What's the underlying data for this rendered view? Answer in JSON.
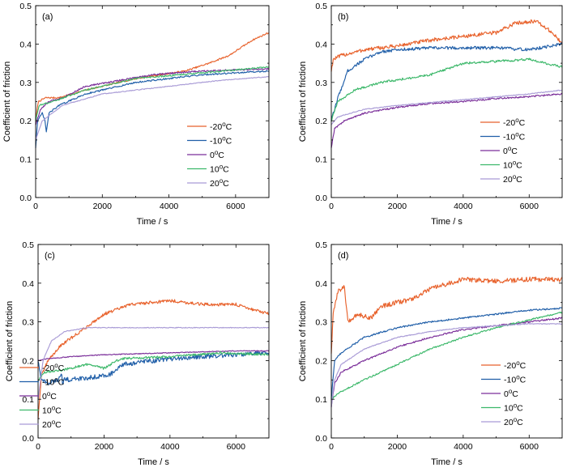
{
  "colors": {
    "-20": "#e8622c",
    "-10": "#1f5ea8",
    "0": "#7b2f9a",
    "10": "#3cb86a",
    "20": "#a99bd6"
  },
  "legend_labels": [
    "-20ºC",
    "-10ºC",
    "0ºC",
    "10ºC",
    "20ºC"
  ],
  "chart_data": [
    {
      "type": "line",
      "panel": "(a)",
      "xlabel": "Time / s",
      "ylabel": "Coefficient of friction",
      "xlim": [
        0,
        7000
      ],
      "ylim": [
        0,
        0.5
      ],
      "xticks": [
        0,
        2000,
        4000,
        6000
      ],
      "yticks": [
        0,
        0.1,
        0.2,
        0.3,
        0.4,
        0.5
      ],
      "legend_position": "bottom-right",
      "series": [
        {
          "name": "-20ºC",
          "key": "-20",
          "noise": 0.002,
          "points": [
            [
              0,
              0.2
            ],
            [
              80,
              0.25
            ],
            [
              300,
              0.26
            ],
            [
              700,
              0.26
            ],
            [
              1500,
              0.28
            ],
            [
              3000,
              0.31
            ],
            [
              4500,
              0.33
            ],
            [
              5200,
              0.35
            ],
            [
              5800,
              0.37
            ],
            [
              6500,
              0.41
            ],
            [
              7000,
              0.43
            ]
          ]
        },
        {
          "name": "-10ºC",
          "key": "-10",
          "noise": 0.002,
          "points": [
            [
              0,
              0.13
            ],
            [
              60,
              0.2
            ],
            [
              200,
              0.22
            ],
            [
              280,
              0.2
            ],
            [
              320,
              0.17
            ],
            [
              400,
              0.22
            ],
            [
              700,
              0.24
            ],
            [
              1500,
              0.27
            ],
            [
              3000,
              0.3
            ],
            [
              5000,
              0.32
            ],
            [
              7000,
              0.33
            ]
          ]
        },
        {
          "name": "0ºC",
          "key": "0",
          "noise": 0.002,
          "points": [
            [
              0,
              0.19
            ],
            [
              150,
              0.23
            ],
            [
              400,
              0.25
            ],
            [
              800,
              0.26
            ],
            [
              1500,
              0.29
            ],
            [
              2500,
              0.305
            ],
            [
              3500,
              0.32
            ],
            [
              5000,
              0.33
            ],
            [
              7000,
              0.335
            ]
          ]
        },
        {
          "name": "10ºC",
          "key": "10",
          "noise": 0.002,
          "points": [
            [
              0,
              0.2
            ],
            [
              100,
              0.24
            ],
            [
              500,
              0.25
            ],
            [
              1500,
              0.28
            ],
            [
              3000,
              0.31
            ],
            [
              5000,
              0.325
            ],
            [
              7000,
              0.34
            ]
          ]
        },
        {
          "name": "20ºC",
          "key": "20",
          "noise": 0.001,
          "points": [
            [
              0,
              0.15
            ],
            [
              200,
              0.2
            ],
            [
              800,
              0.24
            ],
            [
              2000,
              0.27
            ],
            [
              4000,
              0.29
            ],
            [
              5500,
              0.305
            ],
            [
              7000,
              0.315
            ]
          ]
        }
      ]
    },
    {
      "type": "line",
      "panel": "(b)",
      "xlabel": "Time / s",
      "ylabel": "Coefficient of friction",
      "xlim": [
        0,
        7000
      ],
      "ylim": [
        0,
        0.5
      ],
      "xticks": [
        0,
        2000,
        4000,
        6000
      ],
      "yticks": [
        0,
        0.1,
        0.2,
        0.3,
        0.4,
        0.5
      ],
      "legend_position": "bottom-right",
      "series": [
        {
          "name": "-20ºC",
          "key": "-20",
          "noise": 0.005,
          "points": [
            [
              0,
              0.33
            ],
            [
              60,
              0.36
            ],
            [
              300,
              0.37
            ],
            [
              1000,
              0.385
            ],
            [
              2000,
              0.395
            ],
            [
              3000,
              0.41
            ],
            [
              4000,
              0.42
            ],
            [
              5000,
              0.43
            ],
            [
              5600,
              0.455
            ],
            [
              6200,
              0.46
            ],
            [
              6700,
              0.43
            ],
            [
              7000,
              0.4
            ]
          ]
        },
        {
          "name": "-10ºC",
          "key": "-10",
          "noise": 0.004,
          "points": [
            [
              0,
              0.2
            ],
            [
              200,
              0.26
            ],
            [
              500,
              0.33
            ],
            [
              1000,
              0.36
            ],
            [
              1500,
              0.38
            ],
            [
              2000,
              0.385
            ],
            [
              3000,
              0.39
            ],
            [
              4000,
              0.39
            ],
            [
              5000,
              0.39
            ],
            [
              6000,
              0.385
            ],
            [
              7000,
              0.4
            ]
          ]
        },
        {
          "name": "0ºC",
          "key": "0",
          "noise": 0.002,
          "points": [
            [
              0,
              0.13
            ],
            [
              100,
              0.18
            ],
            [
              400,
              0.2
            ],
            [
              1000,
              0.22
            ],
            [
              2000,
              0.235
            ],
            [
              3000,
              0.245
            ],
            [
              4000,
              0.25
            ],
            [
              5000,
              0.258
            ],
            [
              6000,
              0.263
            ],
            [
              7000,
              0.27
            ]
          ]
        },
        {
          "name": "10ºC",
          "key": "10",
          "noise": 0.003,
          "points": [
            [
              0,
              0.2
            ],
            [
              200,
              0.25
            ],
            [
              700,
              0.28
            ],
            [
              1500,
              0.3
            ],
            [
              3000,
              0.32
            ],
            [
              4000,
              0.35
            ],
            [
              5000,
              0.355
            ],
            [
              6000,
              0.36
            ],
            [
              7000,
              0.34
            ]
          ]
        },
        {
          "name": "20ºC",
          "key": "20",
          "noise": 0.001,
          "points": [
            [
              0,
              0.19
            ],
            [
              200,
              0.21
            ],
            [
              1000,
              0.23
            ],
            [
              2000,
              0.24
            ],
            [
              4000,
              0.255
            ],
            [
              6000,
              0.27
            ],
            [
              7000,
              0.28
            ]
          ]
        }
      ]
    },
    {
      "type": "line",
      "panel": "(c)",
      "xlabel": "Time / s",
      "ylabel": "Coefficient of  friction",
      "xlim": [
        0,
        7000
      ],
      "ylim": [
        0,
        0.5
      ],
      "xticks": [
        0,
        2000,
        4000,
        6000
      ],
      "yticks": [
        0,
        0.1,
        0.2,
        0.3,
        0.4,
        0.5
      ],
      "legend_position": "bottom-left",
      "series": [
        {
          "name": "-20ºC",
          "key": "-20",
          "noise": 0.004,
          "points": [
            [
              0,
              0.05
            ],
            [
              100,
              0.16
            ],
            [
              300,
              0.2
            ],
            [
              700,
              0.24
            ],
            [
              1200,
              0.27
            ],
            [
              2000,
              0.32
            ],
            [
              2800,
              0.345
            ],
            [
              4000,
              0.355
            ],
            [
              5000,
              0.345
            ],
            [
              6000,
              0.345
            ],
            [
              7000,
              0.32
            ]
          ]
        },
        {
          "name": "-10ºC",
          "key": "-10",
          "noise": 0.006,
          "points": [
            [
              0,
              0.2
            ],
            [
              100,
              0.15
            ],
            [
              300,
              0.14
            ],
            [
              600,
              0.15
            ],
            [
              700,
              0.17
            ],
            [
              750,
              0.14
            ],
            [
              800,
              0.15
            ],
            [
              1500,
              0.155
            ],
            [
              2200,
              0.165
            ],
            [
              2600,
              0.19
            ],
            [
              3500,
              0.2
            ],
            [
              5000,
              0.21
            ],
            [
              7000,
              0.22
            ]
          ]
        },
        {
          "name": "0ºC",
          "key": "0",
          "noise": 0.001,
          "points": [
            [
              0,
              0.2
            ],
            [
              300,
              0.205
            ],
            [
              1000,
              0.21
            ],
            [
              2000,
              0.215
            ],
            [
              4000,
              0.22
            ],
            [
              6000,
              0.225
            ],
            [
              7000,
              0.225
            ]
          ]
        },
        {
          "name": "10ºC",
          "key": "10",
          "noise": 0.003,
          "points": [
            [
              0,
              0.15
            ],
            [
              200,
              0.17
            ],
            [
              700,
              0.175
            ],
            [
              1500,
              0.19
            ],
            [
              2000,
              0.18
            ],
            [
              2500,
              0.205
            ],
            [
              4000,
              0.21
            ],
            [
              5500,
              0.22
            ],
            [
              7000,
              0.215
            ]
          ]
        },
        {
          "name": "20ºC",
          "key": "20",
          "noise": 0.001,
          "points": [
            [
              0,
              0.1
            ],
            [
              150,
              0.2
            ],
            [
              400,
              0.25
            ],
            [
              800,
              0.275
            ],
            [
              1500,
              0.285
            ],
            [
              3000,
              0.285
            ],
            [
              5000,
              0.285
            ],
            [
              7000,
              0.285
            ]
          ]
        }
      ]
    },
    {
      "type": "line",
      "panel": "(d)",
      "xlabel": "Time / s",
      "ylabel": "Coefficient of  friction",
      "xlim": [
        0,
        7000
      ],
      "ylim": [
        0,
        0.5
      ],
      "xticks": [
        0,
        2000,
        4000,
        6000
      ],
      "yticks": [
        0,
        0.1,
        0.2,
        0.3,
        0.4,
        0.5
      ],
      "legend_position": "bottom-right",
      "series": [
        {
          "name": "-20ºC",
          "key": "-20",
          "noise": 0.006,
          "points": [
            [
              0,
              0.22
            ],
            [
              60,
              0.32
            ],
            [
              200,
              0.38
            ],
            [
              400,
              0.39
            ],
            [
              500,
              0.3
            ],
            [
              800,
              0.32
            ],
            [
              1200,
              0.31
            ],
            [
              1500,
              0.34
            ],
            [
              2500,
              0.36
            ],
            [
              3000,
              0.385
            ],
            [
              4000,
              0.41
            ],
            [
              5000,
              0.405
            ],
            [
              6000,
              0.41
            ],
            [
              7000,
              0.41
            ]
          ]
        },
        {
          "name": "-10ºC",
          "key": "-10",
          "noise": 0.002,
          "points": [
            [
              0,
              0.1
            ],
            [
              100,
              0.2
            ],
            [
              300,
              0.22
            ],
            [
              1000,
              0.26
            ],
            [
              2000,
              0.285
            ],
            [
              3000,
              0.3
            ],
            [
              4000,
              0.31
            ],
            [
              5000,
              0.32
            ],
            [
              6000,
              0.33
            ],
            [
              7000,
              0.335
            ]
          ]
        },
        {
          "name": "0ºC",
          "key": "0",
          "noise": 0.002,
          "points": [
            [
              0,
              0.08
            ],
            [
              100,
              0.14
            ],
            [
              300,
              0.17
            ],
            [
              1000,
              0.2
            ],
            [
              2000,
              0.235
            ],
            [
              3000,
              0.26
            ],
            [
              4000,
              0.28
            ],
            [
              5000,
              0.29
            ],
            [
              6000,
              0.3
            ],
            [
              7000,
              0.31
            ]
          ]
        },
        {
          "name": "10ºC",
          "key": "10",
          "noise": 0.002,
          "points": [
            [
              0,
              0.1
            ],
            [
              300,
              0.12
            ],
            [
              1000,
              0.15
            ],
            [
              2000,
              0.19
            ],
            [
              3000,
              0.23
            ],
            [
              4000,
              0.26
            ],
            [
              5000,
              0.285
            ],
            [
              6000,
              0.305
            ],
            [
              7000,
              0.325
            ]
          ]
        },
        {
          "name": "20ºC",
          "key": "20",
          "noise": 0.001,
          "points": [
            [
              0,
              0.08
            ],
            [
              100,
              0.15
            ],
            [
              300,
              0.19
            ],
            [
              1000,
              0.23
            ],
            [
              2000,
              0.26
            ],
            [
              3000,
              0.275
            ],
            [
              4000,
              0.285
            ],
            [
              5000,
              0.29
            ],
            [
              6000,
              0.295
            ],
            [
              7000,
              0.295
            ]
          ]
        }
      ]
    }
  ]
}
